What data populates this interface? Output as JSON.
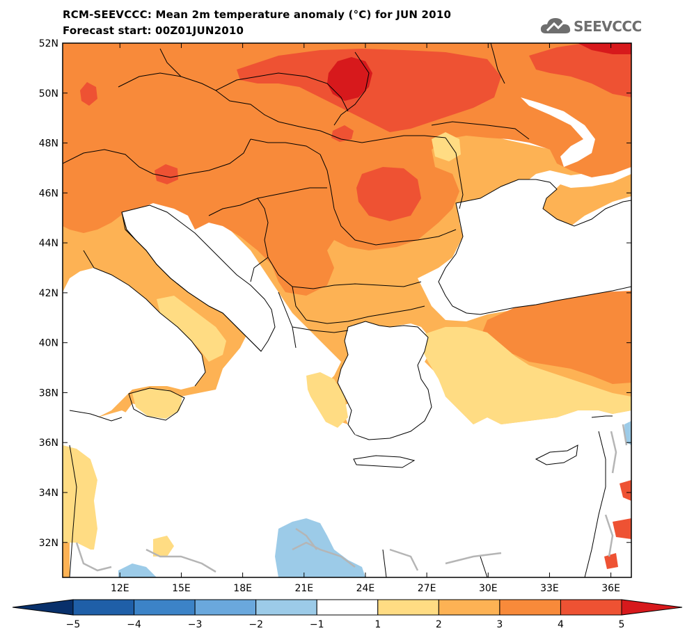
{
  "header": {
    "title": "RCM-SEEVCCC: Mean 2m temperature anomaly (°C) for JUN 2010",
    "subtitle": "Forecast start: 00Z01JUN2010"
  },
  "logo": {
    "text": "SEEVCCC",
    "icon": "cloud-icon"
  },
  "map": {
    "lat_labels": [
      "52N",
      "50N",
      "48N",
      "46N",
      "44N",
      "42N",
      "40N",
      "38N",
      "36N",
      "34N",
      "32N"
    ],
    "lon_labels": [
      "12E",
      "15E",
      "18E",
      "21E",
      "24E",
      "27E",
      "30E",
      "33E",
      "36E"
    ],
    "extent": {
      "lon_min": 9.2,
      "lon_max": 37.0,
      "lat_min": 30.6,
      "lat_max": 52.0
    }
  },
  "colorbar": {
    "labels": [
      "−5",
      "−4",
      "−3",
      "−2",
      "−1",
      "1",
      "2",
      "3",
      "4",
      "5"
    ],
    "colors": [
      "#1f5fa8",
      "#3c83c7",
      "#6aa8dd",
      "#9ccbe8",
      "#ffffff",
      "#ffdc83",
      "#fdb254",
      "#f88a3a",
      "#ee5233"
    ],
    "lower_extend_color": "#08306b",
    "upper_extend_color": "#d7191c"
  },
  "colors": {
    "level_1_2": "#ffdc83",
    "level_2_3": "#fdb254",
    "level_3_4": "#f88a3a",
    "level_4_5": "#ee5233",
    "level_5_plus": "#d7191c",
    "level_m1_m2": "#9ccbe8",
    "level_m2_m3": "#6aa8dd",
    "contour_grey": "#b5b5b5"
  }
}
